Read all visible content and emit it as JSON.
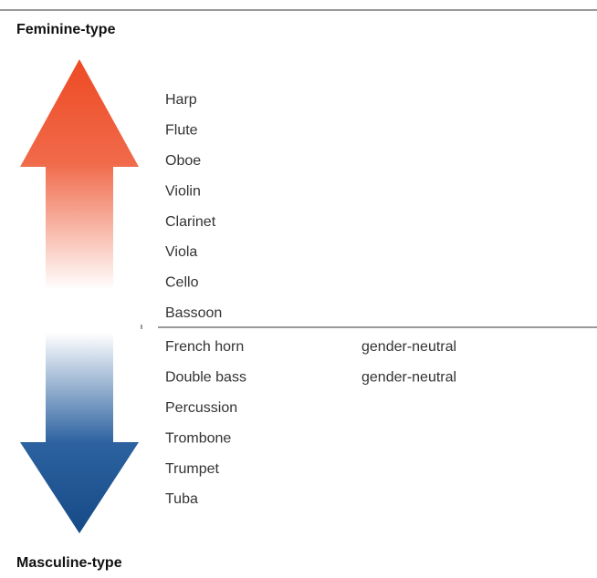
{
  "header": {
    "top": "Feminine-type",
    "bottom": "Masculine-type"
  },
  "feminine": [
    "Harp",
    "Flute",
    "Oboe",
    "Violin",
    "Clarinet",
    "Viola",
    "Cello",
    "Bassoon"
  ],
  "masculine": [
    {
      "name": "French horn",
      "note": "gender-neutral"
    },
    {
      "name": "Double bass",
      "note": "gender-neutral"
    },
    {
      "name": "Percussion"
    },
    {
      "name": "Trombone"
    },
    {
      "name": "Trumpet"
    },
    {
      "name": "Tuba"
    }
  ]
}
